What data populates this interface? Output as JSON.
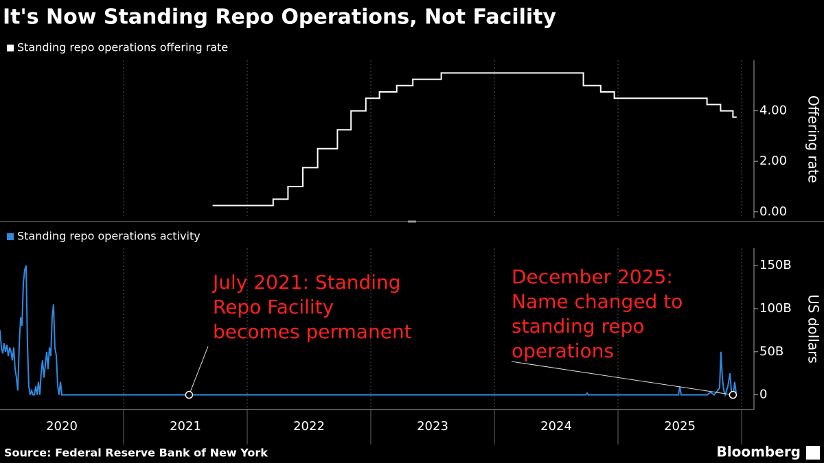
{
  "title": "It's Now Standing Repo Operations, Not Facility",
  "source": "Source: Federal Reserve Bank of New York",
  "brand": "Bloomberg",
  "chart_data": [
    {
      "type": "line",
      "step": true,
      "series": [
        {
          "name": "Standing repo operations offering rate",
          "color": "#ffffff",
          "x": [
            2021.72,
            2022.21,
            2022.33,
            2022.45,
            2022.57,
            2022.73,
            2022.84,
            2022.96,
            2023.07,
            2023.21,
            2023.34,
            2023.57,
            2024.72,
            2024.86,
            2024.97,
            2025.72,
            2025.83,
            2025.93,
            2025.96
          ],
          "values": [
            0.25,
            0.5,
            1.0,
            1.75,
            2.5,
            3.25,
            4.0,
            4.5,
            4.75,
            5.0,
            5.25,
            5.5,
            5.0,
            4.75,
            4.5,
            4.25,
            4.0,
            3.75,
            3.75
          ]
        }
      ],
      "ylabel": "Offering rate",
      "xlim": [
        2020,
        2026
      ],
      "xgrid": [
        2021,
        2022,
        2023,
        2024,
        2025,
        2026
      ],
      "ylim": [
        -0.25,
        6.0
      ],
      "yticks": [
        {
          "value": 0,
          "label": "0.00"
        },
        {
          "value": 2,
          "label": "2.00"
        },
        {
          "value": 4,
          "label": "4.00"
        }
      ]
    },
    {
      "type": "line",
      "series": [
        {
          "name": "Standing repo operations activity",
          "color": "#2f8ae0",
          "x": [
            2020.0,
            2020.011,
            2020.022,
            2020.033,
            2020.044,
            2020.056,
            2020.067,
            2020.078,
            2020.089,
            2020.1,
            2020.111,
            2020.122,
            2020.133,
            2020.144,
            2020.156,
            2020.167,
            2020.178,
            2020.189,
            2020.2,
            2020.211,
            2020.222,
            2020.233,
            2020.244,
            2020.256,
            2020.267,
            2020.278,
            2020.289,
            2020.3,
            2020.311,
            2020.322,
            2020.333,
            2020.344,
            2020.356,
            2020.367,
            2020.378,
            2020.389,
            2020.4,
            2020.411,
            2020.422,
            2020.433,
            2020.444,
            2020.456,
            2020.467,
            2020.478,
            2020.489,
            2020.5,
            2020.511,
            2024.739,
            2024.75,
            2024.761,
            2025.489,
            2025.5,
            2025.511,
            2025.722,
            2025.75,
            2025.778,
            2025.806,
            2025.822,
            2025.833,
            2025.844,
            2025.856,
            2025.867,
            2025.889,
            2025.906,
            2025.917,
            2025.933,
            2025.944,
            2025.956
          ],
          "values": [
            75,
            55,
            48,
            60,
            50,
            58,
            45,
            55,
            50,
            40,
            55,
            30,
            20,
            5,
            60,
            90,
            80,
            130,
            145,
            150,
            60,
            10,
            0,
            5,
            0,
            0,
            10,
            0,
            15,
            0,
            25,
            40,
            20,
            35,
            50,
            30,
            55,
            45,
            90,
            105,
            55,
            45,
            10,
            0,
            15,
            0,
            0,
            0,
            2,
            0,
            0,
            10,
            0,
            0,
            3,
            0,
            5,
            8,
            50,
            20,
            5,
            0,
            10,
            25,
            5,
            0,
            15,
            2
          ]
        }
      ],
      "ylabel": "US dollars",
      "xlim": [
        2020,
        2026
      ],
      "xgrid": [
        2021,
        2022,
        2023,
        2024,
        2025,
        2026
      ],
      "xticks": [
        {
          "value": 2020.5,
          "label": "2020"
        },
        {
          "value": 2021.5,
          "label": "2021"
        },
        {
          "value": 2022.5,
          "label": "2022"
        },
        {
          "value": 2023.5,
          "label": "2023"
        },
        {
          "value": 2024.5,
          "label": "2024"
        },
        {
          "value": 2025.5,
          "label": "2025"
        }
      ],
      "ylim": [
        -17,
        170
      ],
      "yticks": [
        0,
        {
          "value": 50,
          "label": "50B"
        },
        {
          "value": 100,
          "label": "100B"
        },
        {
          "value": 150,
          "label": "150B"
        }
      ],
      "annotations": [
        {
          "lines": [
            "July 2021: Standing",
            "Repo Facility",
            "becomes permanent"
          ],
          "x": 2021.53,
          "y": 0
        },
        {
          "lines": [
            "December 2025:",
            "Name changed to",
            "standing repo",
            "operations"
          ],
          "x": 2025.93,
          "y": 0
        }
      ]
    }
  ]
}
